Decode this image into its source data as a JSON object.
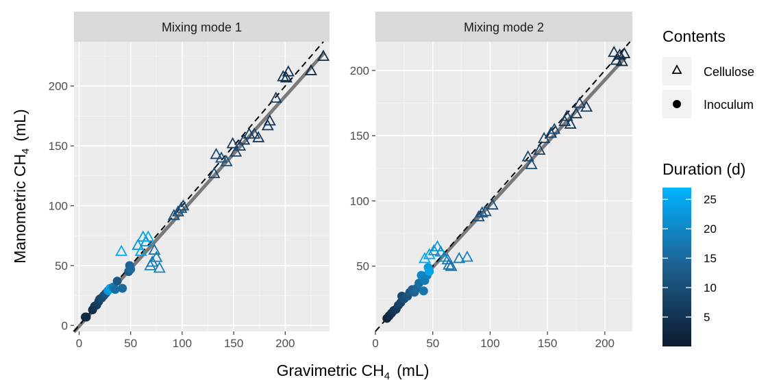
{
  "chart_data": {
    "type": "scatter",
    "xlabel": "Gravimetric CH",
    "xlabel_sub": "4",
    "xlabel_unit": "(mL)",
    "ylabel": "Manometric CH",
    "ylabel_sub": "4",
    "ylabel_unit": "(mL)",
    "legend": {
      "contents_title": "Contents",
      "contents_items": [
        "Cellulose",
        "Inoculum"
      ],
      "duration_title": "Duration (d)",
      "duration_ticks": [
        5,
        10,
        15,
        20,
        25
      ],
      "duration_range": [
        0,
        27
      ],
      "color_low": "#0c1b2e",
      "color_high": "#00b4ff"
    },
    "reference_line": "1:1 (dashed)",
    "fit_line": "linear fit (grey)",
    "panels": [
      {
        "title": "Mixing mode 1",
        "xlim": [
          -5,
          243
        ],
        "ylim": [
          -5,
          237
        ],
        "xticks": [
          0,
          50,
          100,
          150,
          200
        ],
        "yticks": [
          0,
          50,
          100,
          150,
          200
        ],
        "fit": [
          [
            -5,
            -5.5
          ],
          [
            238,
            228
          ]
        ],
        "points": [
          {
            "contents": "Inoculum",
            "x": 6,
            "y": 7,
            "d": 2
          },
          {
            "contents": "Inoculum",
            "x": 7,
            "y": 7,
            "d": 3
          },
          {
            "contents": "Inoculum",
            "x": 13,
            "y": 13,
            "d": 4
          },
          {
            "contents": "Inoculum",
            "x": 15,
            "y": 16,
            "d": 5
          },
          {
            "contents": "Inoculum",
            "x": 17,
            "y": 17,
            "d": 6
          },
          {
            "contents": "Inoculum",
            "x": 19,
            "y": 20,
            "d": 7
          },
          {
            "contents": "Inoculum",
            "x": 20,
            "y": 22,
            "d": 8
          },
          {
            "contents": "Inoculum",
            "x": 22,
            "y": 23,
            "d": 9
          },
          {
            "contents": "Inoculum",
            "x": 24,
            "y": 25,
            "d": 10
          },
          {
            "contents": "Inoculum",
            "x": 26,
            "y": 27,
            "d": 11
          },
          {
            "contents": "Inoculum",
            "x": 28,
            "y": 29,
            "d": 22
          },
          {
            "contents": "Inoculum",
            "x": 30,
            "y": 31,
            "d": 24
          },
          {
            "contents": "Inoculum",
            "x": 33,
            "y": 32,
            "d": 18
          },
          {
            "contents": "Inoculum",
            "x": 35,
            "y": 30,
            "d": 16
          },
          {
            "contents": "Inoculum",
            "x": 37,
            "y": 37,
            "d": 12
          },
          {
            "contents": "Inoculum",
            "x": 42,
            "y": 31,
            "d": 15
          },
          {
            "contents": "Inoculum",
            "x": 48,
            "y": 45,
            "d": 13
          },
          {
            "contents": "Inoculum",
            "x": 49,
            "y": 50,
            "d": 14
          },
          {
            "contents": "Inoculum",
            "x": 50,
            "y": 47,
            "d": 15
          },
          {
            "contents": "Cellulose",
            "x": 41,
            "y": 62,
            "d": 25
          },
          {
            "contents": "Cellulose",
            "x": 57,
            "y": 67,
            "d": 22
          },
          {
            "contents": "Cellulose",
            "x": 60,
            "y": 62,
            "d": 24
          },
          {
            "contents": "Cellulose",
            "x": 62,
            "y": 74,
            "d": 23
          },
          {
            "contents": "Cellulose",
            "x": 65,
            "y": 70,
            "d": 21
          },
          {
            "contents": "Cellulose",
            "x": 67,
            "y": 74,
            "d": 26
          },
          {
            "contents": "Cellulose",
            "x": 69,
            "y": 50,
            "d": 20
          },
          {
            "contents": "Cellulose",
            "x": 71,
            "y": 53,
            "d": 17
          },
          {
            "contents": "Cellulose",
            "x": 73,
            "y": 63,
            "d": 16
          },
          {
            "contents": "Cellulose",
            "x": 75,
            "y": 57,
            "d": 18
          },
          {
            "contents": "Cellulose",
            "x": 78,
            "y": 48,
            "d": 19
          },
          {
            "contents": "Cellulose",
            "x": 92,
            "y": 92,
            "d": 10
          },
          {
            "contents": "Cellulose",
            "x": 96,
            "y": 95,
            "d": 11
          },
          {
            "contents": "Cellulose",
            "x": 99,
            "y": 98,
            "d": 12
          },
          {
            "contents": "Cellulose",
            "x": 101,
            "y": 100,
            "d": 9
          },
          {
            "contents": "Cellulose",
            "x": 131,
            "y": 127,
            "d": 8
          },
          {
            "contents": "Cellulose",
            "x": 133,
            "y": 143,
            "d": 9
          },
          {
            "contents": "Cellulose",
            "x": 138,
            "y": 140,
            "d": 10
          },
          {
            "contents": "Cellulose",
            "x": 143,
            "y": 137,
            "d": 11
          },
          {
            "contents": "Cellulose",
            "x": 149,
            "y": 152,
            "d": 7
          },
          {
            "contents": "Cellulose",
            "x": 152,
            "y": 145,
            "d": 8
          },
          {
            "contents": "Cellulose",
            "x": 156,
            "y": 150,
            "d": 9
          },
          {
            "contents": "Cellulose",
            "x": 160,
            "y": 155,
            "d": 6
          },
          {
            "contents": "Cellulose",
            "x": 165,
            "y": 160,
            "d": 6
          },
          {
            "contents": "Cellulose",
            "x": 170,
            "y": 160,
            "d": 7
          },
          {
            "contents": "Cellulose",
            "x": 174,
            "y": 157,
            "d": 5
          },
          {
            "contents": "Cellulose",
            "x": 183,
            "y": 167,
            "d": 6
          },
          {
            "contents": "Cellulose",
            "x": 185,
            "y": 171,
            "d": 5
          },
          {
            "contents": "Cellulose",
            "x": 191,
            "y": 190,
            "d": 7
          },
          {
            "contents": "Cellulose",
            "x": 198,
            "y": 208,
            "d": 5
          },
          {
            "contents": "Cellulose",
            "x": 201,
            "y": 207,
            "d": 4
          },
          {
            "contents": "Cellulose",
            "x": 203,
            "y": 212,
            "d": 4
          },
          {
            "contents": "Cellulose",
            "x": 225,
            "y": 213,
            "d": 3
          },
          {
            "contents": "Cellulose",
            "x": 237,
            "y": 225,
            "d": 3
          }
        ]
      },
      {
        "title": "Mixing mode 2",
        "xlim": [
          0,
          224
        ],
        "ylim": [
          0,
          222
        ],
        "xticks": [
          0,
          50,
          100,
          150,
          200
        ],
        "yticks": [
          50,
          100,
          150,
          200
        ],
        "fit": [
          [
            8,
            9
          ],
          [
            218,
            210
          ]
        ],
        "points": [
          {
            "contents": "Inoculum",
            "x": 10,
            "y": 10,
            "d": 2
          },
          {
            "contents": "Inoculum",
            "x": 12,
            "y": 12,
            "d": 3
          },
          {
            "contents": "Inoculum",
            "x": 14,
            "y": 14,
            "d": 4
          },
          {
            "contents": "Inoculum",
            "x": 16,
            "y": 16,
            "d": 5
          },
          {
            "contents": "Inoculum",
            "x": 18,
            "y": 17,
            "d": 6
          },
          {
            "contents": "Inoculum",
            "x": 20,
            "y": 20,
            "d": 7
          },
          {
            "contents": "Inoculum",
            "x": 22,
            "y": 22,
            "d": 8
          },
          {
            "contents": "Inoculum",
            "x": 23,
            "y": 27,
            "d": 9
          },
          {
            "contents": "Inoculum",
            "x": 25,
            "y": 25,
            "d": 10
          },
          {
            "contents": "Inoculum",
            "x": 28,
            "y": 27,
            "d": 11
          },
          {
            "contents": "Inoculum",
            "x": 30,
            "y": 30,
            "d": 12
          },
          {
            "contents": "Inoculum",
            "x": 32,
            "y": 32,
            "d": 13
          },
          {
            "contents": "Inoculum",
            "x": 34,
            "y": 30,
            "d": 14
          },
          {
            "contents": "Inoculum",
            "x": 36,
            "y": 33,
            "d": 15
          },
          {
            "contents": "Inoculum",
            "x": 38,
            "y": 37,
            "d": 16
          },
          {
            "contents": "Inoculum",
            "x": 40,
            "y": 43,
            "d": 20
          },
          {
            "contents": "Inoculum",
            "x": 42,
            "y": 31,
            "d": 17
          },
          {
            "contents": "Inoculum",
            "x": 43,
            "y": 39,
            "d": 18
          },
          {
            "contents": "Inoculum",
            "x": 45,
            "y": 43,
            "d": 19
          },
          {
            "contents": "Inoculum",
            "x": 46,
            "y": 49,
            "d": 23
          },
          {
            "contents": "Inoculum",
            "x": 47,
            "y": 46,
            "d": 24
          },
          {
            "contents": "Cellulose",
            "x": 43,
            "y": 56,
            "d": 25
          },
          {
            "contents": "Cellulose",
            "x": 47,
            "y": 59,
            "d": 24
          },
          {
            "contents": "Cellulose",
            "x": 51,
            "y": 62,
            "d": 22
          },
          {
            "contents": "Cellulose",
            "x": 54,
            "y": 65,
            "d": 23
          },
          {
            "contents": "Cellulose",
            "x": 57,
            "y": 61,
            "d": 21
          },
          {
            "contents": "Cellulose",
            "x": 60,
            "y": 57,
            "d": 20
          },
          {
            "contents": "Cellulose",
            "x": 63,
            "y": 55,
            "d": 19
          },
          {
            "contents": "Cellulose",
            "x": 64,
            "y": 51,
            "d": 17
          },
          {
            "contents": "Cellulose",
            "x": 66,
            "y": 50,
            "d": 15
          },
          {
            "contents": "Cellulose",
            "x": 73,
            "y": 56,
            "d": 18
          },
          {
            "contents": "Cellulose",
            "x": 80,
            "y": 57,
            "d": 20
          },
          {
            "contents": "Cellulose",
            "x": 90,
            "y": 88,
            "d": 10
          },
          {
            "contents": "Cellulose",
            "x": 93,
            "y": 91,
            "d": 11
          },
          {
            "contents": "Cellulose",
            "x": 96,
            "y": 92,
            "d": 12
          },
          {
            "contents": "Cellulose",
            "x": 102,
            "y": 97,
            "d": 9
          },
          {
            "contents": "Cellulose",
            "x": 133,
            "y": 134,
            "d": 9
          },
          {
            "contents": "Cellulose",
            "x": 136,
            "y": 128,
            "d": 10
          },
          {
            "contents": "Cellulose",
            "x": 143,
            "y": 139,
            "d": 8
          },
          {
            "contents": "Cellulose",
            "x": 147,
            "y": 148,
            "d": 7
          },
          {
            "contents": "Cellulose",
            "x": 153,
            "y": 152,
            "d": 8
          },
          {
            "contents": "Cellulose",
            "x": 156,
            "y": 155,
            "d": 9
          },
          {
            "contents": "Cellulose",
            "x": 165,
            "y": 161,
            "d": 6
          },
          {
            "contents": "Cellulose",
            "x": 167,
            "y": 165,
            "d": 7
          },
          {
            "contents": "Cellulose",
            "x": 170,
            "y": 159,
            "d": 6
          },
          {
            "contents": "Cellulose",
            "x": 175,
            "y": 167,
            "d": 5
          },
          {
            "contents": "Cellulose",
            "x": 178,
            "y": 175,
            "d": 7
          },
          {
            "contents": "Cellulose",
            "x": 184,
            "y": 172,
            "d": 6
          },
          {
            "contents": "Cellulose",
            "x": 208,
            "y": 214,
            "d": 4
          },
          {
            "contents": "Cellulose",
            "x": 210,
            "y": 208,
            "d": 5
          },
          {
            "contents": "Cellulose",
            "x": 213,
            "y": 212,
            "d": 4
          },
          {
            "contents": "Cellulose",
            "x": 215,
            "y": 207,
            "d": 3
          },
          {
            "contents": "Cellulose",
            "x": 217,
            "y": 213,
            "d": 3
          }
        ]
      }
    ]
  }
}
